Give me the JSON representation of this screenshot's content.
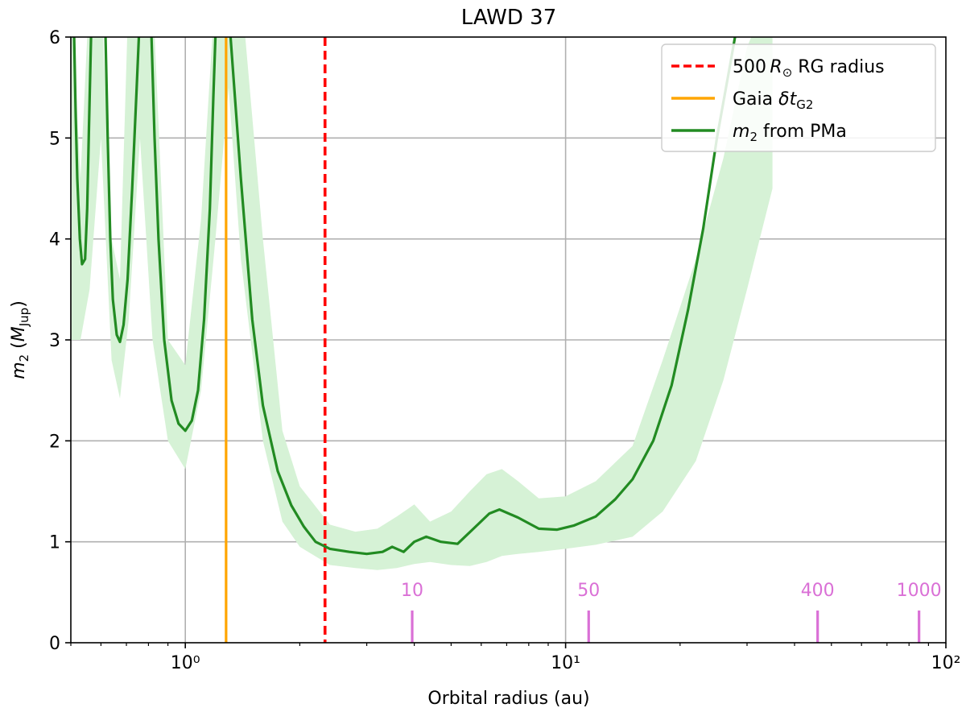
{
  "chart_data": {
    "type": "line",
    "title": "LAWD 37",
    "xlabel": "Orbital radius (au)",
    "ylabel": "m₂ (M_Jup)",
    "x_scale": "log",
    "xlim": [
      0.5,
      100
    ],
    "ylim": [
      0,
      6
    ],
    "x_ticks": [
      {
        "value": 1,
        "label": "10⁰"
      },
      {
        "value": 10,
        "label": "10¹"
      },
      {
        "value": 100,
        "label": "10²"
      }
    ],
    "y_ticks": [
      0,
      1,
      2,
      3,
      4,
      5,
      6
    ],
    "grid": true,
    "legend_position": "top-right",
    "colors": {
      "curve": "#228b22",
      "band": "#d6f2d6",
      "rg_line": "#ff0000",
      "gaia_line": "#ffa500",
      "period_markers": "#da70d6"
    },
    "legend": [
      {
        "key": "rg",
        "label_pre": "500",
        "label_sym": "R",
        "label_sub": "⊙",
        "label_post": "RG radius",
        "style": "dashed"
      },
      {
        "key": "gaia",
        "label_pre": "Gaia ",
        "label_sym": "δt",
        "label_sub": "G2",
        "label_post": "",
        "style": "solid"
      },
      {
        "key": "pma",
        "label_pre": "",
        "label_sym": "m",
        "label_sub": "2",
        "label_post": " from PMa",
        "style": "solid"
      }
    ],
    "vlines": {
      "rg_radius_au": 2.33,
      "gaia_dt_au": 1.28
    },
    "period_markers": [
      {
        "label": "10",
        "x": 3.95
      },
      {
        "label": "50",
        "x": 11.5
      },
      {
        "label": "400",
        "x": 46
      },
      {
        "label": "1000",
        "x": 85
      }
    ],
    "series": [
      {
        "name": "m₂ from PMa",
        "points": [
          [
            0.5,
            7.0
          ],
          [
            0.51,
            6.0
          ],
          [
            0.515,
            5.2
          ],
          [
            0.52,
            4.6
          ],
          [
            0.528,
            4.0
          ],
          [
            0.535,
            3.75
          ],
          [
            0.545,
            3.8
          ],
          [
            0.552,
            4.3
          ],
          [
            0.558,
            5.1
          ],
          [
            0.565,
            6.0
          ],
          [
            0.57,
            7.0
          ],
          [
            0.61,
            7.0
          ],
          [
            0.617,
            6.0
          ],
          [
            0.625,
            5.0
          ],
          [
            0.635,
            4.0
          ],
          [
            0.645,
            3.4
          ],
          [
            0.66,
            3.05
          ],
          [
            0.673,
            2.98
          ],
          [
            0.688,
            3.15
          ],
          [
            0.705,
            3.6
          ],
          [
            0.725,
            4.5
          ],
          [
            0.745,
            5.5
          ],
          [
            0.755,
            6.0
          ],
          [
            0.765,
            7.0
          ],
          [
            0.8,
            7.0
          ],
          [
            0.815,
            6.0
          ],
          [
            0.83,
            5.0
          ],
          [
            0.85,
            4.0
          ],
          [
            0.88,
            3.0
          ],
          [
            0.92,
            2.4
          ],
          [
            0.96,
            2.17
          ],
          [
            1.0,
            2.1
          ],
          [
            1.04,
            2.2
          ],
          [
            1.08,
            2.5
          ],
          [
            1.12,
            3.2
          ],
          [
            1.16,
            4.3
          ],
          [
            1.185,
            5.4
          ],
          [
            1.2,
            6.0
          ],
          [
            1.21,
            7.0
          ],
          [
            1.3,
            7.0
          ],
          [
            1.315,
            6.0
          ],
          [
            1.4,
            4.6
          ],
          [
            1.5,
            3.2
          ],
          [
            1.6,
            2.35
          ],
          [
            1.75,
            1.7
          ],
          [
            1.9,
            1.36
          ],
          [
            2.05,
            1.15
          ],
          [
            2.2,
            1.0
          ],
          [
            2.4,
            0.93
          ],
          [
            2.7,
            0.9
          ],
          [
            3.0,
            0.88
          ],
          [
            3.3,
            0.9
          ],
          [
            3.5,
            0.95
          ],
          [
            3.75,
            0.9
          ],
          [
            4.0,
            1.0
          ],
          [
            4.3,
            1.05
          ],
          [
            4.7,
            1.0
          ],
          [
            5.2,
            0.98
          ],
          [
            5.8,
            1.15
          ],
          [
            6.3,
            1.28
          ],
          [
            6.7,
            1.32
          ],
          [
            7.5,
            1.24
          ],
          [
            8.5,
            1.13
          ],
          [
            9.5,
            1.12
          ],
          [
            10.5,
            1.16
          ],
          [
            12.0,
            1.25
          ],
          [
            13.5,
            1.42
          ],
          [
            15.0,
            1.62
          ],
          [
            17.0,
            2.0
          ],
          [
            19.0,
            2.55
          ],
          [
            21.0,
            3.3
          ],
          [
            23.0,
            4.1
          ],
          [
            25.0,
            5.0
          ],
          [
            27.0,
            5.7
          ],
          [
            28.5,
            6.2
          ]
        ]
      }
    ],
    "band": {
      "name": "m₂ uncertainty",
      "x": [
        0.5,
        0.53,
        0.56,
        0.6,
        0.64,
        0.673,
        0.71,
        0.76,
        0.82,
        0.9,
        1.0,
        1.1,
        1.2,
        1.3,
        1.4,
        1.6,
        1.8,
        2.0,
        2.4,
        2.8,
        3.2,
        3.6,
        4.0,
        4.4,
        5.0,
        5.6,
        6.2,
        6.8,
        7.5,
        8.5,
        10.0,
        12.0,
        15.0,
        18.0,
        22.0,
        26.0,
        30.0,
        35.0
      ],
      "lower": [
        3.0,
        3.0,
        3.5,
        5.0,
        2.8,
        2.42,
        3.2,
        5.0,
        3.0,
        2.0,
        1.72,
        2.5,
        4.0,
        5.5,
        3.8,
        2.0,
        1.2,
        0.95,
        0.77,
        0.74,
        0.72,
        0.74,
        0.78,
        0.8,
        0.77,
        0.76,
        0.8,
        0.86,
        0.88,
        0.9,
        0.93,
        0.97,
        1.05,
        1.3,
        1.8,
        2.6,
        3.5,
        4.5
      ],
      "upper": [
        6.5,
        4.6,
        6.5,
        6.5,
        4.0,
        3.6,
        6.5,
        6.5,
        6.5,
        3.0,
        2.75,
        4.2,
        6.5,
        6.5,
        6.5,
        4.0,
        2.1,
        1.55,
        1.17,
        1.1,
        1.13,
        1.25,
        1.37,
        1.2,
        1.3,
        1.5,
        1.67,
        1.72,
        1.6,
        1.43,
        1.45,
        1.6,
        1.95,
        2.8,
        3.8,
        4.8,
        5.9,
        6.5
      ]
    }
  }
}
